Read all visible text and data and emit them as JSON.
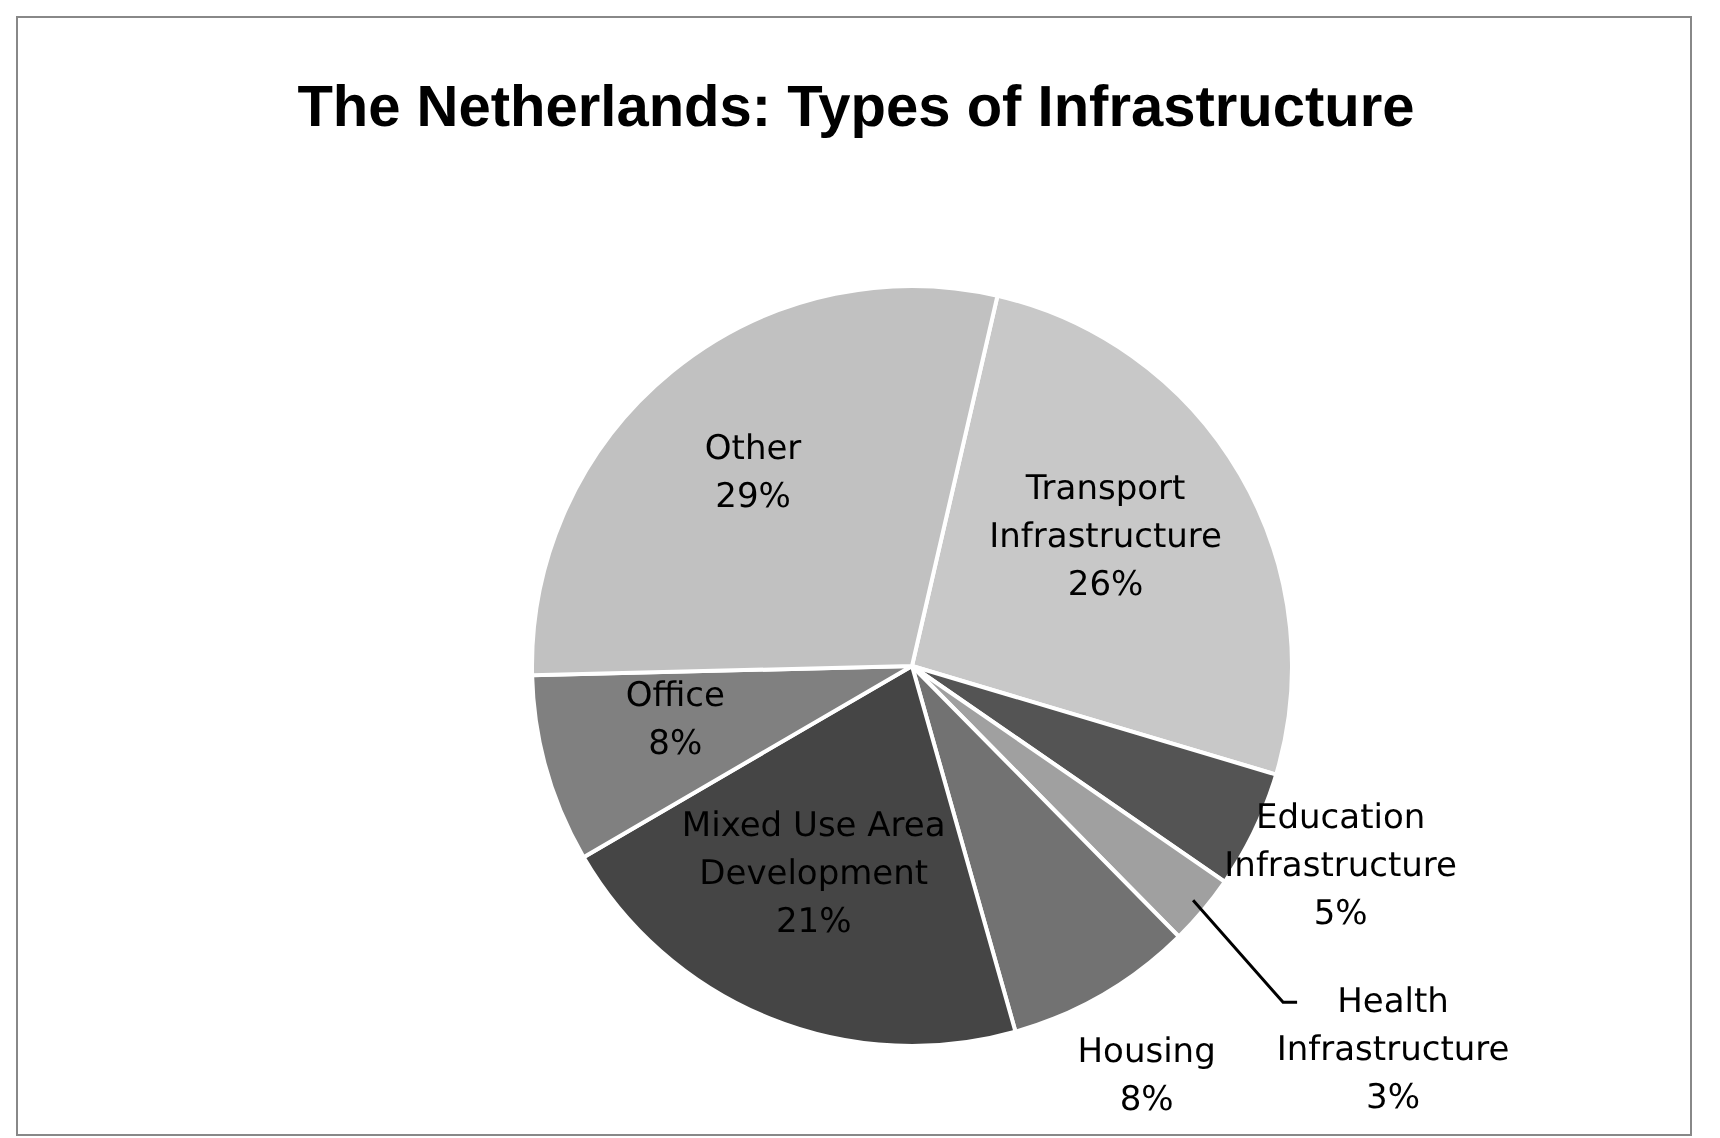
{
  "chart_data": {
    "type": "pie",
    "title": "The Netherlands: Types of Infrastructure",
    "categories": [
      "Transport Infrastructure",
      "Education Infrastructure",
      "Health Infrastructure",
      "Housing",
      "Mixed Use Area Development",
      "Office",
      "Other"
    ],
    "values": [
      26,
      5,
      3,
      8,
      21,
      8,
      29
    ],
    "value_labels": [
      "26%",
      "5%",
      "3%",
      "8%",
      "21%",
      "8%",
      "29%"
    ],
    "colors": [
      "#c8c8c8",
      "#545454",
      "#a0a0a0",
      "#727272",
      "#454545",
      "#808080",
      "#c1c1c1"
    ]
  }
}
